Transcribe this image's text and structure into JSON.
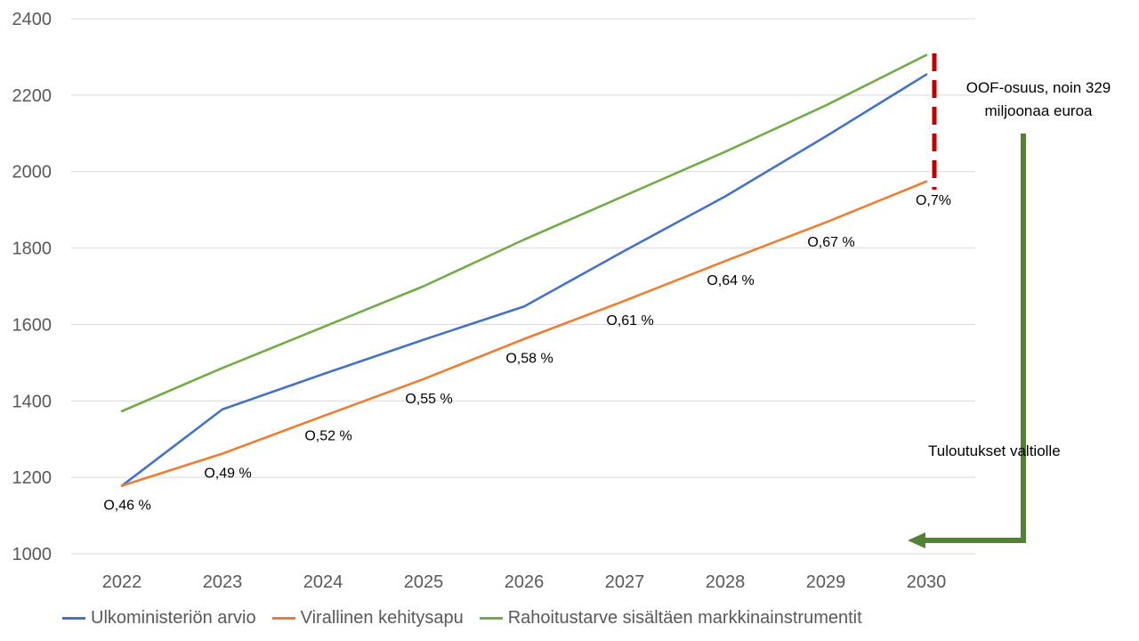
{
  "chart_data": {
    "type": "line",
    "categories": [
      "2022",
      "2023",
      "2024",
      "2025",
      "2026",
      "2027",
      "2028",
      "2029",
      "2030"
    ],
    "ylim": [
      1000,
      2400
    ],
    "yticks": [
      "1000",
      "1200",
      "1400",
      "1600",
      "1800",
      "2000",
      "2200",
      "2400"
    ],
    "grid": true,
    "legend_placement": "bottom",
    "series": [
      {
        "name": "Ulkoministeriön arvio",
        "color": "#4472C4",
        "values": [
          1178,
          1378,
          1470,
          1560,
          1647,
          1793,
          1935,
          2092,
          2254
        ]
      },
      {
        "name": "Virallinen kehitysapu",
        "color": "#ED7D31",
        "values": [
          1178,
          1262,
          1360,
          1457,
          1562,
          1662,
          1766,
          1867,
          1974
        ]
      },
      {
        "name": "Rahoitustarve sisältäen markkinainstrumentit",
        "color": "#70AD47",
        "values": [
          1373,
          1486,
          1593,
          1700,
          1822,
          1937,
          2052,
          2173,
          2305
        ]
      }
    ],
    "data_labels": [
      "O,46 %",
      "O,49 %",
      "O,52 %",
      "O,55 %",
      "O,58 %",
      "O,61 %",
      "O,64 %",
      "O,67 %",
      "O,7%"
    ],
    "annotations": {
      "oof_line1": "OOF-osuus, noin 329",
      "oof_line2": "miljoonaa euroa",
      "revenue": "Tuloutukset valtiolle",
      "oof_marker_color": "#C00000",
      "arrow_color": "#548235"
    }
  }
}
